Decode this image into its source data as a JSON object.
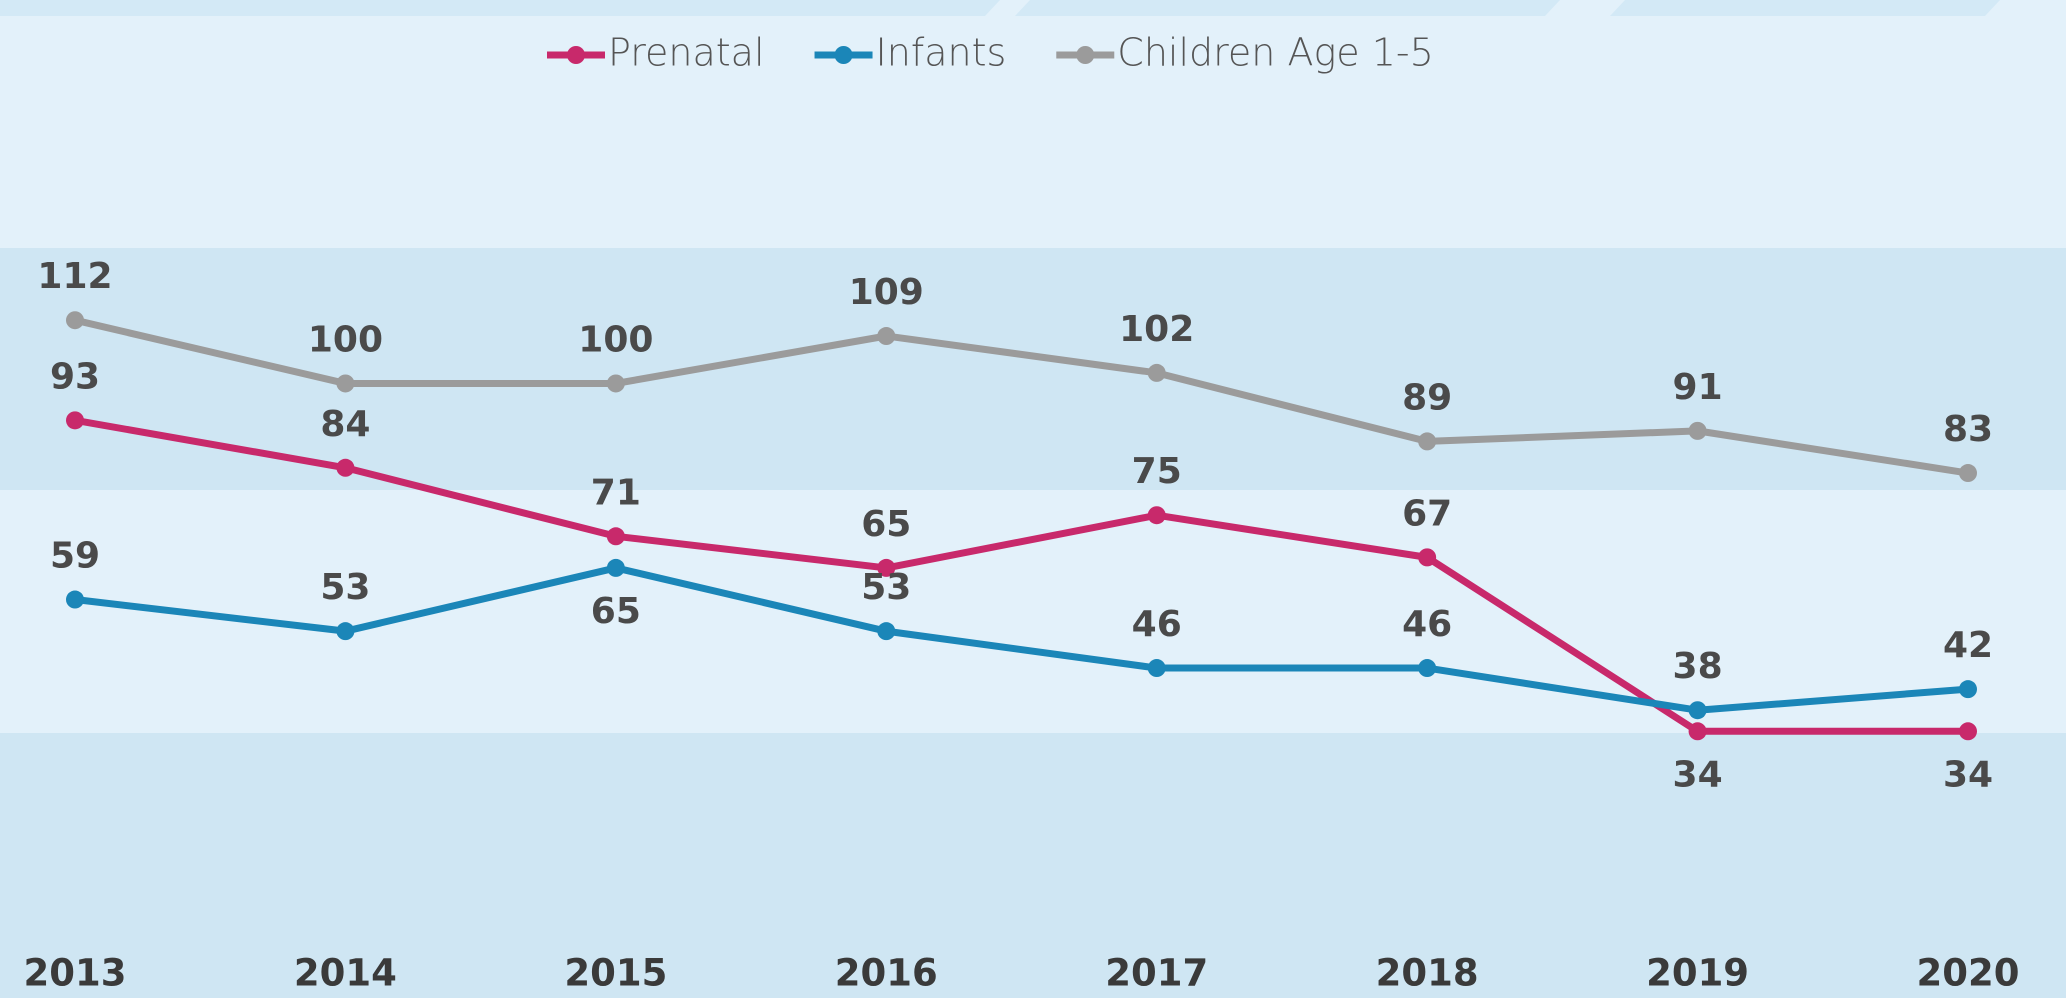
{
  "chart_data": {
    "type": "line",
    "categories": [
      "2013",
      "2014",
      "2015",
      "2016",
      "2017",
      "2018",
      "2019",
      "2020"
    ],
    "series": [
      {
        "name": "Prenatal",
        "color": "#c8296b",
        "values": [
          93,
          84,
          71,
          65,
          75,
          67,
          34,
          34
        ]
      },
      {
        "name": "Infants",
        "color": "#1b86b8",
        "values": [
          59,
          53,
          65,
          53,
          46,
          46,
          38,
          42
        ]
      },
      {
        "name": "Children Age 1-5",
        "color": "#9b9b9b",
        "values": [
          112,
          100,
          100,
          109,
          102,
          89,
          91,
          83
        ]
      }
    ],
    "ylim": [
      -16.6,
      172.75
    ]
  }
}
